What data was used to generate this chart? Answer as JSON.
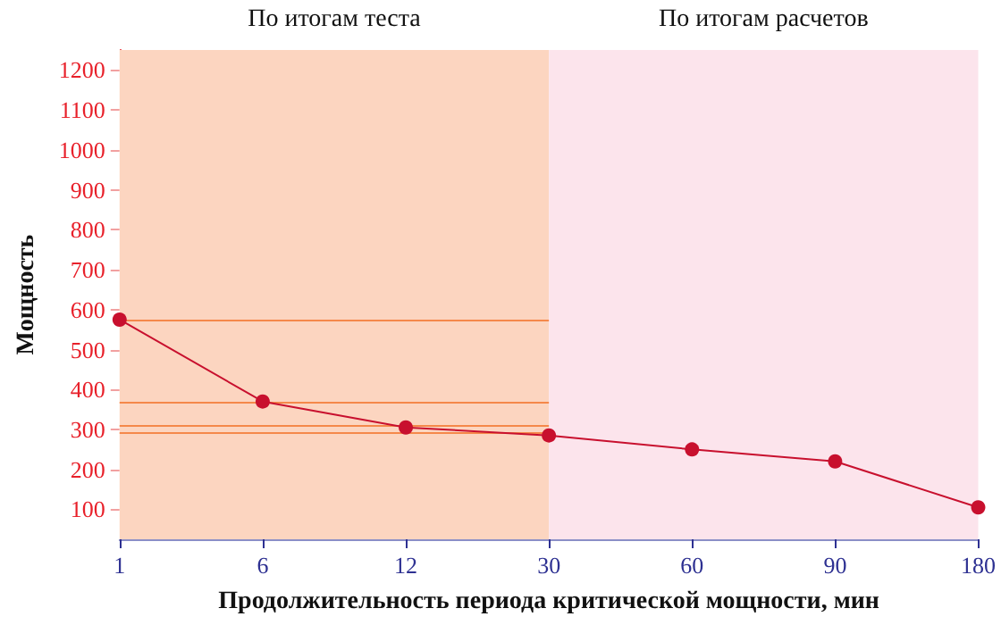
{
  "chart_data": {
    "type": "line",
    "xlabel": "Продолжительность периода критической мощности, мин",
    "ylabel": "Мощность",
    "categories": [
      "1",
      "6",
      "12",
      "30",
      "60",
      "90",
      "180"
    ],
    "series": [
      {
        "color": "#c8102e",
        "values": [
          575,
          370,
          305,
          285,
          250,
          220,
          105
        ]
      }
    ],
    "ylim": [
      25,
      1250
    ],
    "yticks": [
      100,
      200,
      300,
      400,
      500,
      600,
      700,
      800,
      900,
      1000,
      1100,
      1200
    ],
    "bands": [
      {
        "axis": "x",
        "from": "1",
        "to": "30",
        "label": "По итогам теста",
        "color": "#fcd5c0"
      },
      {
        "axis": "x",
        "from": "30",
        "to": "180",
        "label": "По итогам расчетов",
        "color": "#fce4ec"
      }
    ],
    "ref_lines": [
      {
        "axis": "y",
        "value": 575,
        "color": "#f5884a"
      },
      {
        "axis": "y",
        "value": 370,
        "color": "#f5884a"
      },
      {
        "axis": "y",
        "value": 310,
        "color": "#f5884a"
      },
      {
        "axis": "y",
        "value": 290,
        "color": "#f5884a"
      }
    ],
    "marker": "circle",
    "line_style": "solid",
    "grid": false
  }
}
